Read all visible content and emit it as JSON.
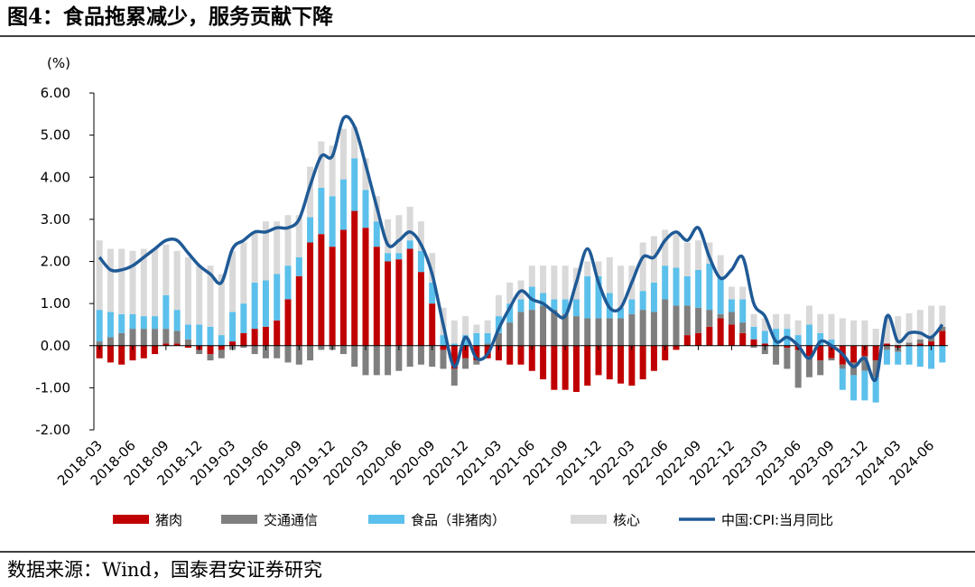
{
  "chart_data": {
    "type": "bar",
    "stacked": true,
    "title": "图4：食品拖累减少，服务贡献下降",
    "source": "数据来源：Wind，国泰君安证券研究",
    "y_unit": "(%)",
    "categories": [
      "2018-03",
      null,
      null,
      "2018-06",
      null,
      null,
      "2018-09",
      null,
      null,
      "2018-12",
      null,
      null,
      "2019-03",
      null,
      null,
      "2019-06",
      null,
      null,
      "2019-09",
      null,
      null,
      "2019-12",
      null,
      null,
      "2020-03",
      null,
      null,
      "2020-06",
      null,
      null,
      "2020-09",
      null,
      null,
      "2020-12",
      null,
      null,
      "2021-03",
      null,
      null,
      "2021-06",
      null,
      null,
      "2021-09",
      null,
      null,
      "2021-12",
      null,
      null,
      "2022-03",
      null,
      null,
      "2022-06",
      null,
      null,
      "2022-09",
      null,
      null,
      "2022-12",
      null,
      null,
      "2023-03",
      null,
      null,
      "2023-06",
      null,
      null,
      "2023-09",
      null,
      null,
      "2023-12",
      null,
      null,
      "2024-03",
      null,
      null,
      "2024-06",
      null
    ],
    "ylim": [
      -2,
      6
    ],
    "yticks": [
      {
        "value": -2,
        "label": "-2.00"
      },
      {
        "value": -1,
        "label": "-1.00"
      },
      {
        "value": 0,
        "label": "0.00"
      },
      {
        "value": 1,
        "label": "1.00"
      },
      {
        "value": 2,
        "label": "2.00"
      },
      {
        "value": 3,
        "label": "3.00"
      },
      {
        "value": 4,
        "label": "4.00"
      },
      {
        "value": 5,
        "label": "5.00"
      },
      {
        "value": 6,
        "label": "6.00"
      }
    ],
    "series": [
      {
        "name": "猪肉",
        "type": "bar",
        "color": "#c00000",
        "values": [
          -0.3,
          -0.4,
          -0.45,
          -0.35,
          -0.3,
          -0.2,
          0.05,
          0.05,
          -0.05,
          -0.1,
          -0.2,
          -0.1,
          0.1,
          0.3,
          0.4,
          0.45,
          0.6,
          1.1,
          1.65,
          2.45,
          2.65,
          2.35,
          2.75,
          3.2,
          2.8,
          2.35,
          2.0,
          2.05,
          2.3,
          1.75,
          1.0,
          -0.1,
          -0.55,
          -0.3,
          -0.35,
          -0.3,
          -0.35,
          -0.45,
          -0.45,
          -0.6,
          -0.8,
          -1.05,
          -1.05,
          -1.1,
          -0.95,
          -0.7,
          -0.8,
          -0.9,
          -0.95,
          -0.8,
          -0.6,
          -0.35,
          -0.1,
          0.25,
          0.3,
          0.45,
          0.65,
          0.5,
          0.3,
          0.15,
          0.05,
          0.0,
          -0.05,
          -0.1,
          -0.25,
          -0.35,
          -0.3,
          -0.45,
          -0.4,
          -0.25,
          -0.35,
          0.05,
          -0.05,
          0.02,
          0.05,
          0.1,
          0.35
        ]
      },
      {
        "name": "交通通信",
        "type": "bar",
        "color": "#7f7f7f",
        "values": [
          0.1,
          0.2,
          0.3,
          0.4,
          0.4,
          0.4,
          0.35,
          0.3,
          0.15,
          -0.1,
          -0.15,
          -0.2,
          -0.1,
          -0.05,
          -0.2,
          -0.3,
          -0.3,
          -0.4,
          -0.45,
          -0.35,
          -0.1,
          -0.1,
          -0.2,
          -0.5,
          -0.7,
          -0.7,
          -0.7,
          -0.6,
          -0.5,
          -0.45,
          -0.5,
          -0.45,
          -0.4,
          -0.25,
          -0.1,
          0.05,
          0.3,
          0.55,
          0.8,
          0.85,
          0.95,
          0.85,
          0.75,
          0.7,
          0.65,
          0.65,
          0.65,
          0.65,
          0.75,
          0.85,
          0.8,
          1.1,
          0.95,
          0.7,
          0.6,
          0.4,
          0.1,
          0.3,
          0.25,
          -0.05,
          -0.2,
          -0.45,
          -0.5,
          -0.9,
          -0.5,
          -0.35,
          -0.05,
          -0.1,
          -0.3,
          -0.35,
          -0.4,
          -0.1,
          -0.1,
          0.05,
          0.1,
          0.1,
          0.1
        ]
      },
      {
        "name": "食品（非猪肉）",
        "type": "bar",
        "color": "#5bc0eb",
        "values": [
          0.75,
          0.6,
          0.45,
          0.35,
          0.3,
          0.3,
          0.8,
          0.5,
          0.35,
          0.5,
          0.45,
          0.25,
          0.7,
          0.7,
          1.1,
          1.1,
          1.1,
          0.8,
          0.45,
          0.6,
          1.1,
          1.2,
          1.2,
          1.25,
          0.9,
          0.6,
          0.2,
          0.15,
          0.2,
          0.5,
          0.5,
          0.25,
          0.05,
          0.25,
          0.3,
          0.25,
          0.4,
          0.45,
          0.3,
          0.55,
          0.3,
          0.25,
          0.35,
          0.4,
          1.0,
          1.0,
          0.6,
          0.25,
          0.35,
          0.45,
          0.7,
          0.8,
          0.9,
          0.7,
          0.9,
          1.1,
          0.9,
          0.3,
          0.55,
          0.3,
          0.3,
          0.4,
          0.4,
          0.25,
          0.5,
          0.3,
          0.15,
          -0.5,
          -0.6,
          -0.7,
          -0.6,
          -0.35,
          -0.3,
          -0.45,
          -0.5,
          -0.55,
          -0.4
        ]
      },
      {
        "name": "核心",
        "type": "bar",
        "color": "#d9d9d9",
        "values": [
          1.65,
          1.5,
          1.55,
          1.5,
          1.6,
          1.6,
          1.2,
          1.4,
          1.6,
          1.4,
          1.45,
          1.45,
          1.45,
          1.45,
          1.2,
          1.4,
          1.25,
          1.2,
          1.0,
          1.2,
          1.1,
          1.2,
          1.2,
          0.75,
          0.75,
          0.6,
          0.8,
          0.9,
          0.8,
          0.7,
          0.7,
          0.65,
          0.55,
          0.45,
          0.2,
          0.3,
          0.5,
          0.5,
          0.45,
          0.5,
          0.65,
          0.8,
          0.8,
          0.75,
          0.35,
          0.35,
          0.85,
          1.0,
          0.8,
          1.15,
          1.1,
          0.85,
          0.8,
          0.8,
          0.7,
          0.5,
          0.5,
          0.3,
          0.3,
          0.3,
          0.3,
          0.35,
          0.35,
          0.35,
          0.45,
          0.45,
          0.6,
          0.65,
          0.6,
          0.6,
          0.4,
          0.65,
          0.7,
          0.7,
          0.7,
          0.75,
          0.5
        ]
      },
      {
        "name": "中国:CPI:当月同比",
        "type": "line",
        "color": "#1f5a96",
        "values": [
          2.1,
          1.8,
          1.8,
          1.9,
          2.1,
          2.3,
          2.5,
          2.5,
          2.2,
          1.9,
          1.7,
          1.5,
          2.3,
          2.5,
          2.7,
          2.7,
          2.8,
          2.8,
          3.0,
          3.8,
          4.5,
          4.5,
          5.4,
          5.2,
          4.3,
          3.3,
          2.4,
          2.5,
          2.7,
          2.4,
          1.7,
          0.5,
          -0.5,
          0.2,
          -0.3,
          -0.2,
          0.4,
          0.9,
          1.3,
          1.1,
          1.0,
          0.8,
          0.7,
          1.5,
          2.3,
          1.5,
          0.9,
          0.9,
          1.5,
          2.1,
          2.1,
          2.5,
          2.7,
          2.5,
          2.8,
          2.1,
          1.6,
          1.8,
          2.1,
          1.0,
          0.7,
          0.1,
          0.2,
          0.0,
          -0.3,
          0.1,
          0.0,
          -0.2,
          -0.5,
          -0.3,
          -0.8,
          0.7,
          0.1,
          0.3,
          0.3,
          0.2,
          0.5
        ]
      }
    ]
  }
}
